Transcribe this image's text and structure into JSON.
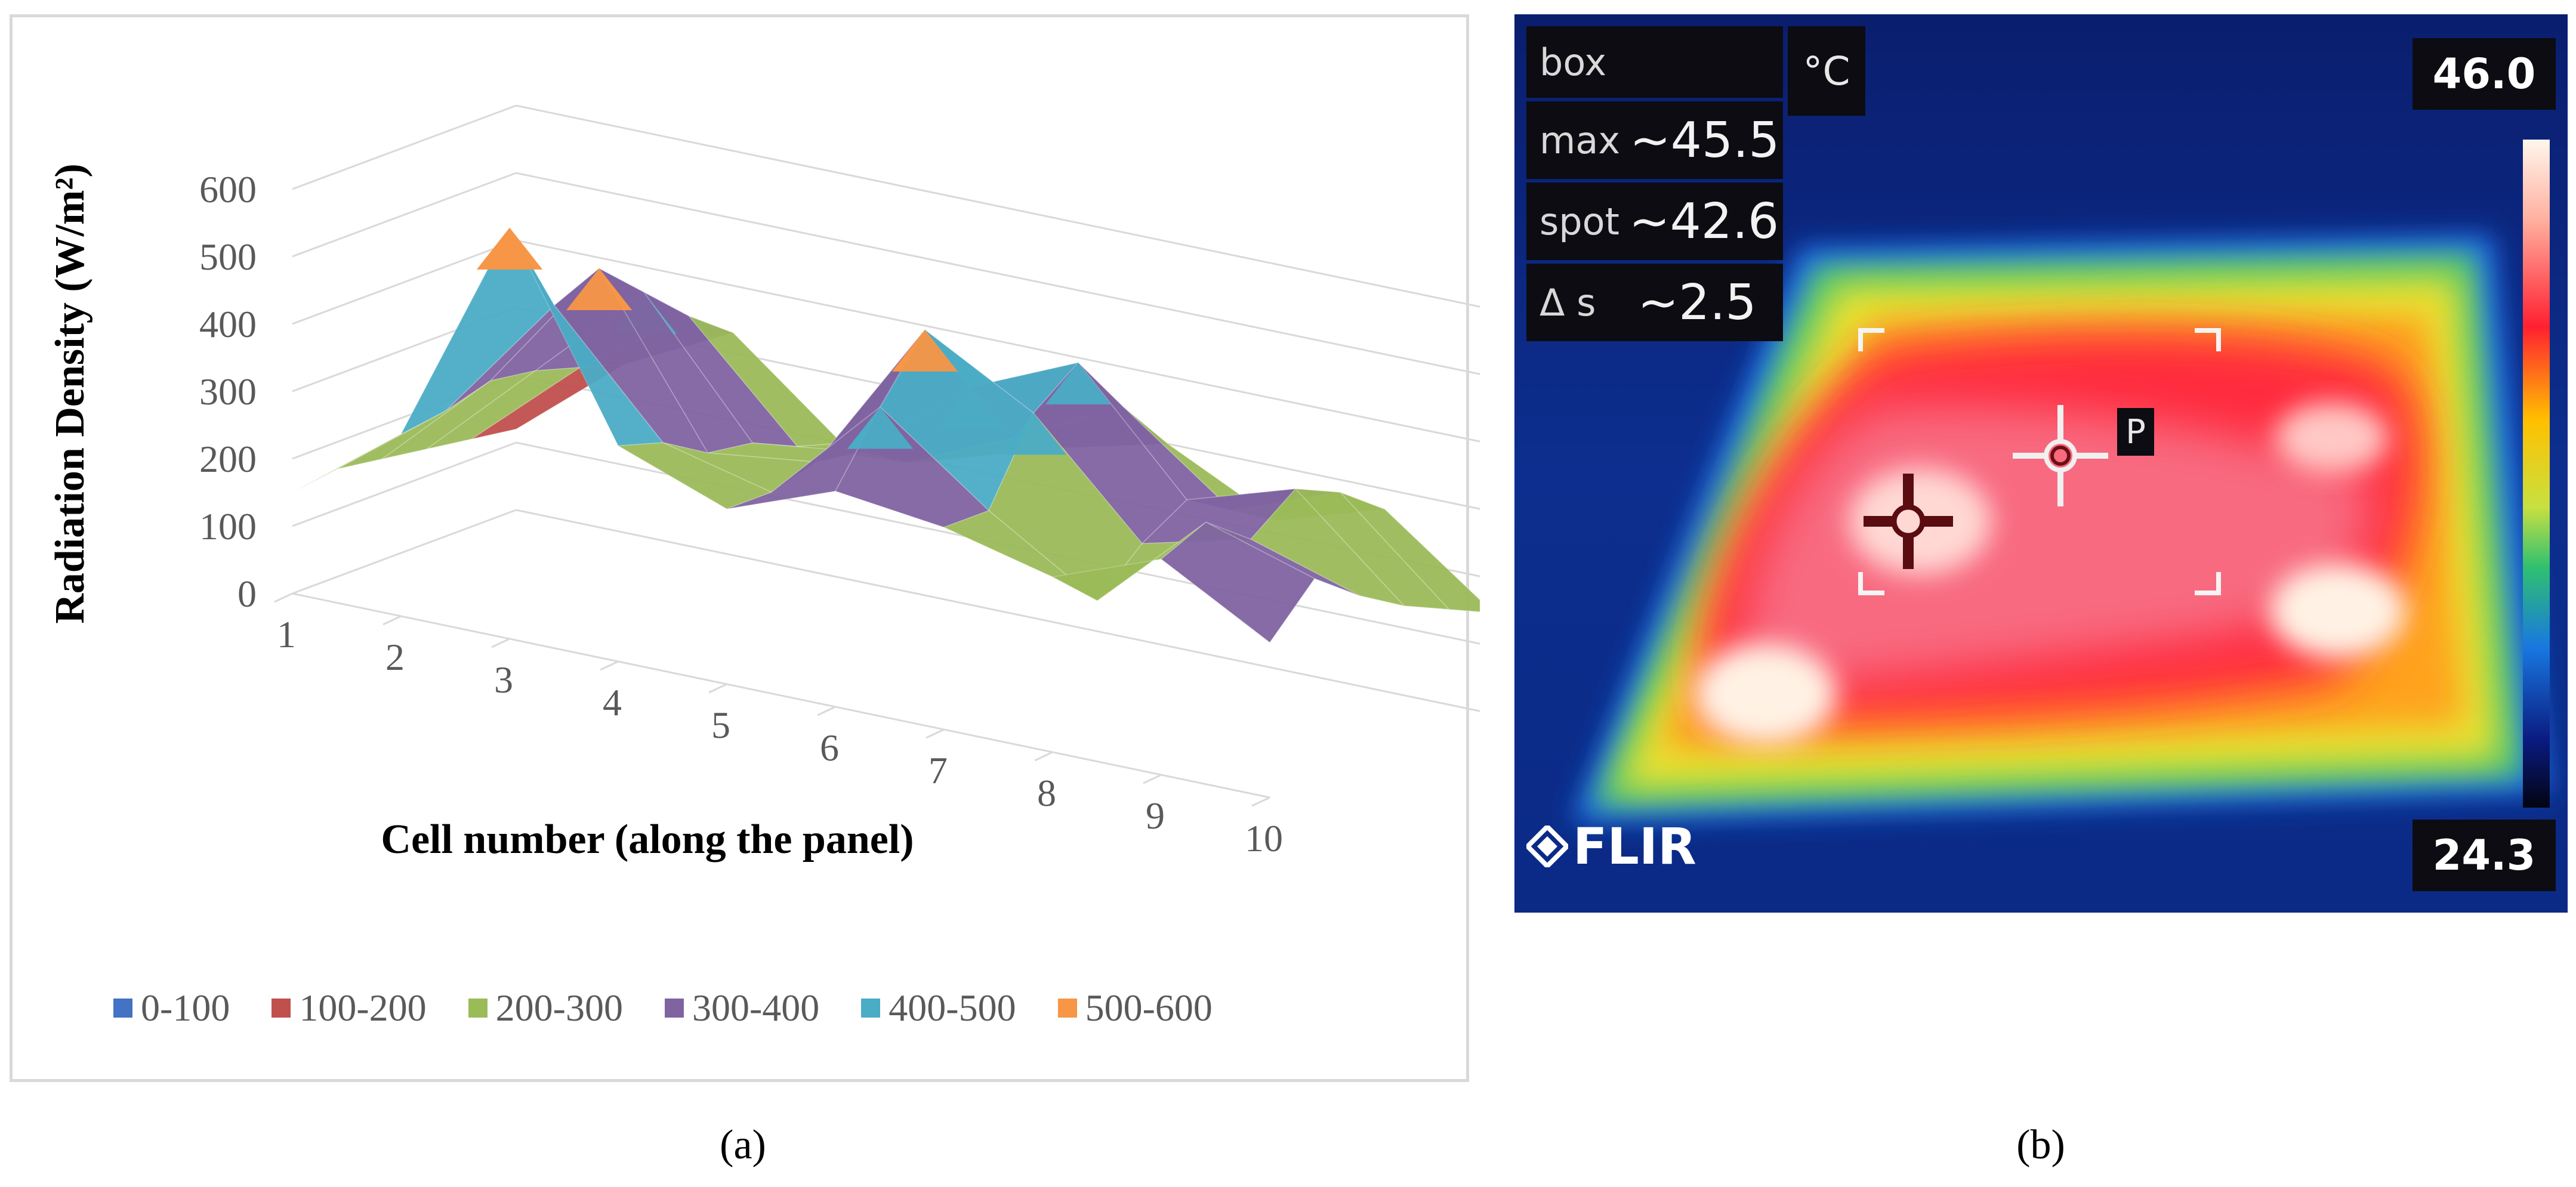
{
  "chart_data": {
    "type": "3d-surface",
    "title": "",
    "ylabel": "Radiation Density (W/m²)",
    "xlabel": "Cell number (along the panel)",
    "ylim": [
      0,
      600
    ],
    "y_ticks": [
      "0",
      "100",
      "200",
      "300",
      "400",
      "500",
      "600"
    ],
    "categories": [
      "1",
      "2",
      "3",
      "4",
      "5",
      "6",
      "7",
      "8",
      "9",
      "10"
    ],
    "rows": 6,
    "values": [
      [
        150,
        270,
        610,
        320,
        260,
        320,
        300,
        260,
        320,
        230
      ],
      [
        160,
        280,
        470,
        300,
        260,
        420,
        300,
        200,
        350,
        300
      ],
      [
        150,
        300,
        500,
        260,
        280,
        510,
        420,
        260,
        300,
        250
      ],
      [
        140,
        290,
        440,
        250,
        270,
        400,
        470,
        300,
        350,
        210
      ],
      [
        130,
        270,
        380,
        220,
        230,
        300,
        380,
        260,
        320,
        180
      ],
      [
        120,
        250,
        330,
        200,
        210,
        260,
        300,
        220,
        270,
        150
      ]
    ],
    "legend": [
      {
        "label": "0-100",
        "color": "#4472c4"
      },
      {
        "label": "100-200",
        "color": "#c0504d"
      },
      {
        "label": "200-300",
        "color": "#9bbb59"
      },
      {
        "label": "300-400",
        "color": "#8064a2"
      },
      {
        "label": "400-500",
        "color": "#4bacc6"
      },
      {
        "label": "500-600",
        "color": "#f79646"
      }
    ]
  },
  "captions": {
    "a": "(a)",
    "b": "(b)"
  },
  "thermal": {
    "units": "°C",
    "box_label": "box",
    "max_label": "max",
    "max_value": "~45.5",
    "spot_label": "spot",
    "spot_value": "~42.6",
    "delta_label": "Δ s",
    "delta_value": "~2.5",
    "scale_max": "46.0",
    "scale_min": "24.3",
    "marker_label": "P",
    "brand": "FLIR"
  }
}
